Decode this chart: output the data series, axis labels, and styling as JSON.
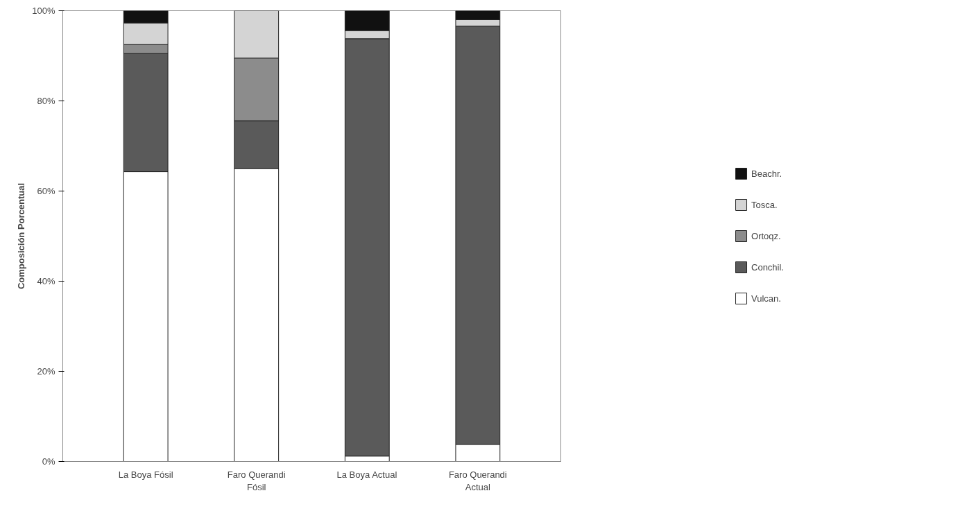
{
  "chart_data": {
    "type": "bar",
    "stacked": true,
    "ylabel": "Composición Porcentual",
    "categories": [
      "La Boya Fósil",
      "Faro Querandi\nFósil",
      "La Boya Actual",
      "Faro Querandi\nActual"
    ],
    "series": [
      {
        "name": "Vulcan.",
        "color": "#ffffff",
        "values": [
          64.3,
          65.0,
          1.2,
          3.8
        ]
      },
      {
        "name": "Conchil.",
        "color": "#5a5a5a",
        "values": [
          26.2,
          10.6,
          92.6,
          92.8
        ]
      },
      {
        "name": "Ortoqz.",
        "color": "#8c8c8c",
        "values": [
          2.0,
          13.9,
          null,
          null
        ]
      },
      {
        "name": "Tosca.",
        "color": "#d4d4d4",
        "values": [
          4.8,
          10.5,
          1.8,
          1.4
        ]
      },
      {
        "name": "Beachr.",
        "color": "#111111",
        "values": [
          2.7,
          null,
          4.4,
          2.0
        ]
      }
    ],
    "ylim": [
      0,
      100
    ],
    "yticks": [
      {
        "value": 0,
        "label": "0%"
      },
      {
        "value": 20,
        "label": "20%"
      },
      {
        "value": 40,
        "label": "40%"
      },
      {
        "value": 60,
        "label": "60%"
      },
      {
        "value": 80,
        "label": "80%"
      },
      {
        "value": 100,
        "label": "100%"
      }
    ],
    "grid": false,
    "legend": "right"
  }
}
